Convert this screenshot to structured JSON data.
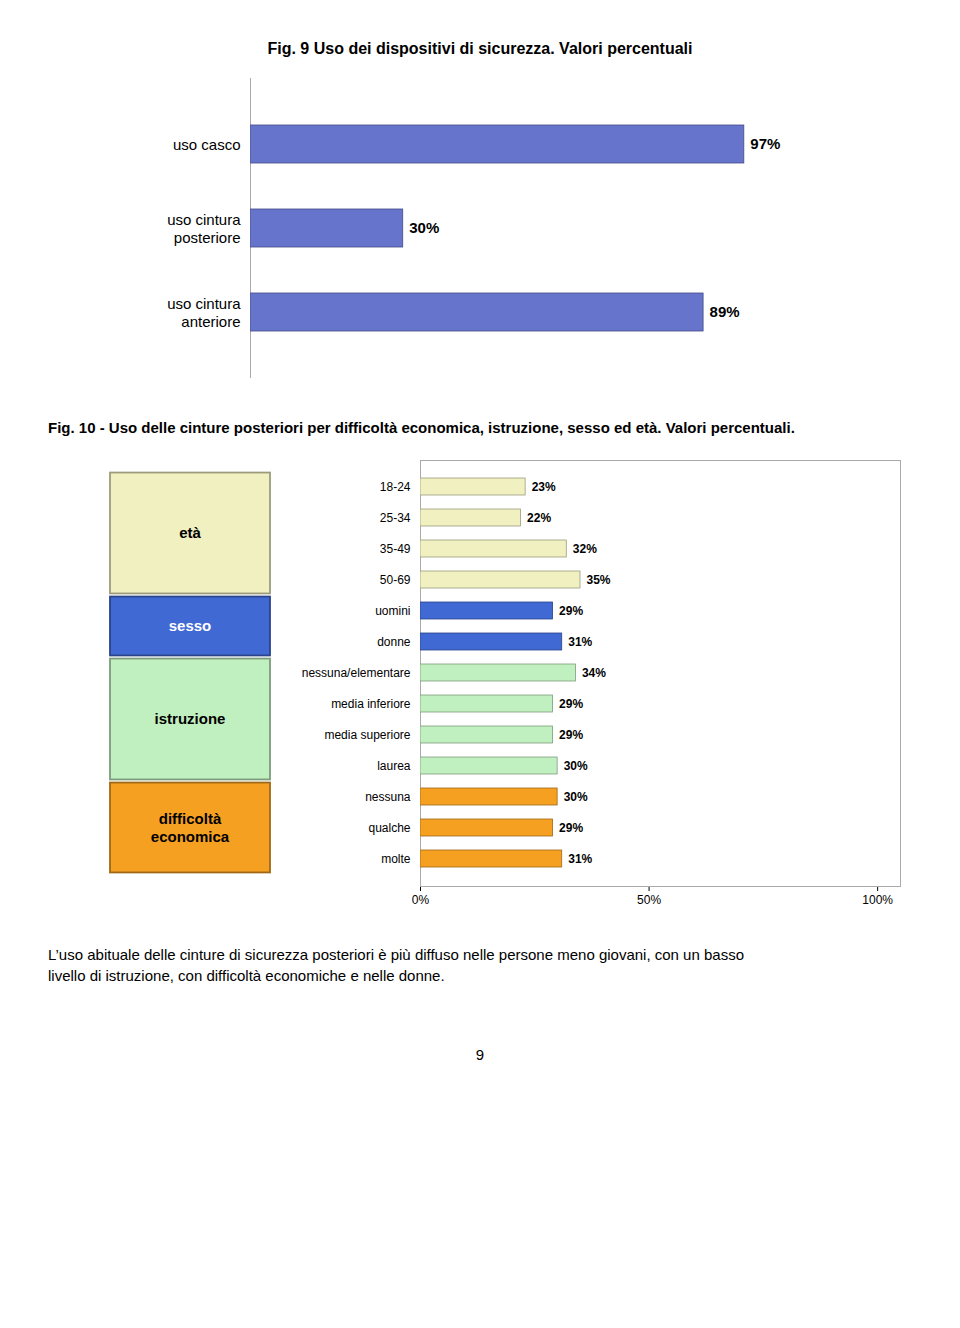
{
  "chart_data": [
    {
      "type": "bar",
      "orientation": "horizontal",
      "title": "Fig. 9 Uso dei dispositivi di sicurezza. Valori percentuali",
      "categories": [
        "uso cintura\nanteriore",
        "uso cintura\nposteriore",
        "uso casco"
      ],
      "values": [
        89,
        30,
        97
      ],
      "color": "#6674CC",
      "xlim": [
        0,
        110
      ],
      "tick_labels": "y",
      "data_labels": true,
      "value_labels": [
        "89%",
        "30%",
        "97%"
      ]
    },
    {
      "type": "bar",
      "orientation": "horizontal",
      "title": "Fig. 10 -  Uso delle cinture posteriori per difficoltà economica, istruzione, sesso ed età. Valori percentuali.",
      "categories": [
        "18-24",
        "25-34",
        "35-49",
        "50-69",
        "uomini",
        "donne",
        "nessuna/elementare",
        "media inferiore",
        "media superiore",
        "laurea",
        "nessuna",
        "qualche",
        "molte"
      ],
      "values": [
        23,
        22,
        32,
        35,
        29,
        31,
        34,
        29,
        29,
        30,
        30,
        29,
        31
      ],
      "colors": [
        "#f0f0c0",
        "#f0f0c0",
        "#f0f0c0",
        "#f0f0c0",
        "#4169d4",
        "#4169d4",
        "#c0f0c0",
        "#c0f0c0",
        "#c0f0c0",
        "#c0f0c0",
        "#f5a020",
        "#f5a020",
        "#f5a020"
      ],
      "xlim": [
        0,
        105
      ],
      "xticks": [
        {
          "value": 0,
          "label": "0%"
        },
        {
          "value": 50,
          "label": "50%"
        },
        {
          "value": 100,
          "label": "100%"
        }
      ],
      "data_labels": true,
      "value_labels": [
        "23%",
        "22%",
        "32%",
        "35%",
        "29%",
        "31%",
        "34%",
        "29%",
        "29%",
        "30%",
        "30%",
        "29%",
        "31%"
      ],
      "groups": [
        {
          "name": "età",
          "categories": [
            "18-24",
            "25-34",
            "35-49",
            "50-69"
          ]
        },
        {
          "name": "sesso",
          "categories": [
            "uomini",
            "donne"
          ]
        },
        {
          "name": "istruzione",
          "categories": [
            "nessuna/elementare",
            "media inferiore",
            "media superiore",
            "laurea"
          ]
        },
        {
          "name": "difficoltà\neconomica",
          "categories": [
            "nessuna",
            "qualche",
            "molte"
          ]
        }
      ],
      "annotations": [
        "L’uso abituale delle cinture di sicurezza posteriori è più diffuso nelle persone meno giovani, con un basso\nlivello di istruzione, con difficoltà economiche e nelle donne.",
        "9"
      ]
    }
  ]
}
